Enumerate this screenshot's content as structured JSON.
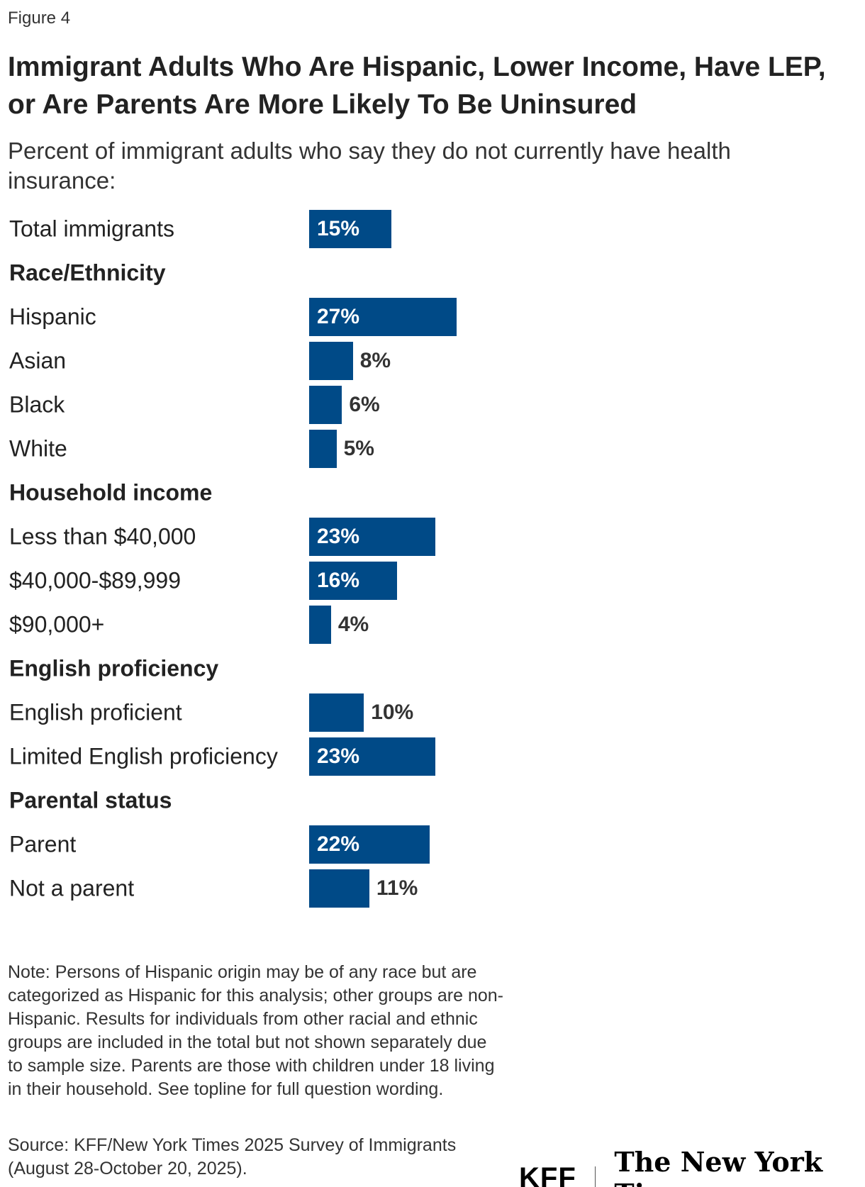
{
  "figure_label": "Figure 4",
  "title": "Immigrant Adults Who Are Hispanic, Lower Income, Have LEP, or Are Parents Are More Likely To Be Uninsured",
  "subtitle": "Percent of immigrant adults who say they do not currently have health insurance:",
  "colors": {
    "bar": "#004a87",
    "inside_label": "#ffffff",
    "outside_label": "#333333"
  },
  "chart_data": {
    "type": "bar",
    "orientation": "horizontal",
    "unit": "%",
    "xlim": [
      0,
      100
    ],
    "grid": false,
    "rows": [
      {
        "label": "Total immigrants",
        "value": 15
      },
      {
        "label": "Race/Ethnicity",
        "header": true
      },
      {
        "label": "Hispanic",
        "value": 27
      },
      {
        "label": "Asian",
        "value": 8
      },
      {
        "label": "Black",
        "value": 6
      },
      {
        "label": "White",
        "value": 5
      },
      {
        "label": "Household income",
        "header": true
      },
      {
        "label": "Less than $40,000",
        "value": 23
      },
      {
        "label": "$40,000-$89,999",
        "value": 16
      },
      {
        "label": "$90,000+",
        "value": 4
      },
      {
        "label": "English proficiency",
        "header": true
      },
      {
        "label": "English proficient",
        "value": 10
      },
      {
        "label": "Limited English proficiency",
        "value": 23
      },
      {
        "label": "Parental status",
        "header": true
      },
      {
        "label": "Parent",
        "value": 22
      },
      {
        "label": "Not a parent",
        "value": 11
      }
    ]
  },
  "note": "Note: Persons of Hispanic origin may be of any race but are categorized as Hispanic for this analysis; other groups are non-Hispanic. Results for individuals from other racial and ethnic groups are included in the total but not shown separately due to sample size. Parents are those with children under 18 living in their household. See topline for full question wording.",
  "source": "Source: KFF/New York Times 2025 Survey of Immigrants (August 28-October 20, 2025).",
  "logos": {
    "kff": "KFF",
    "nyt": "The New York Times"
  }
}
